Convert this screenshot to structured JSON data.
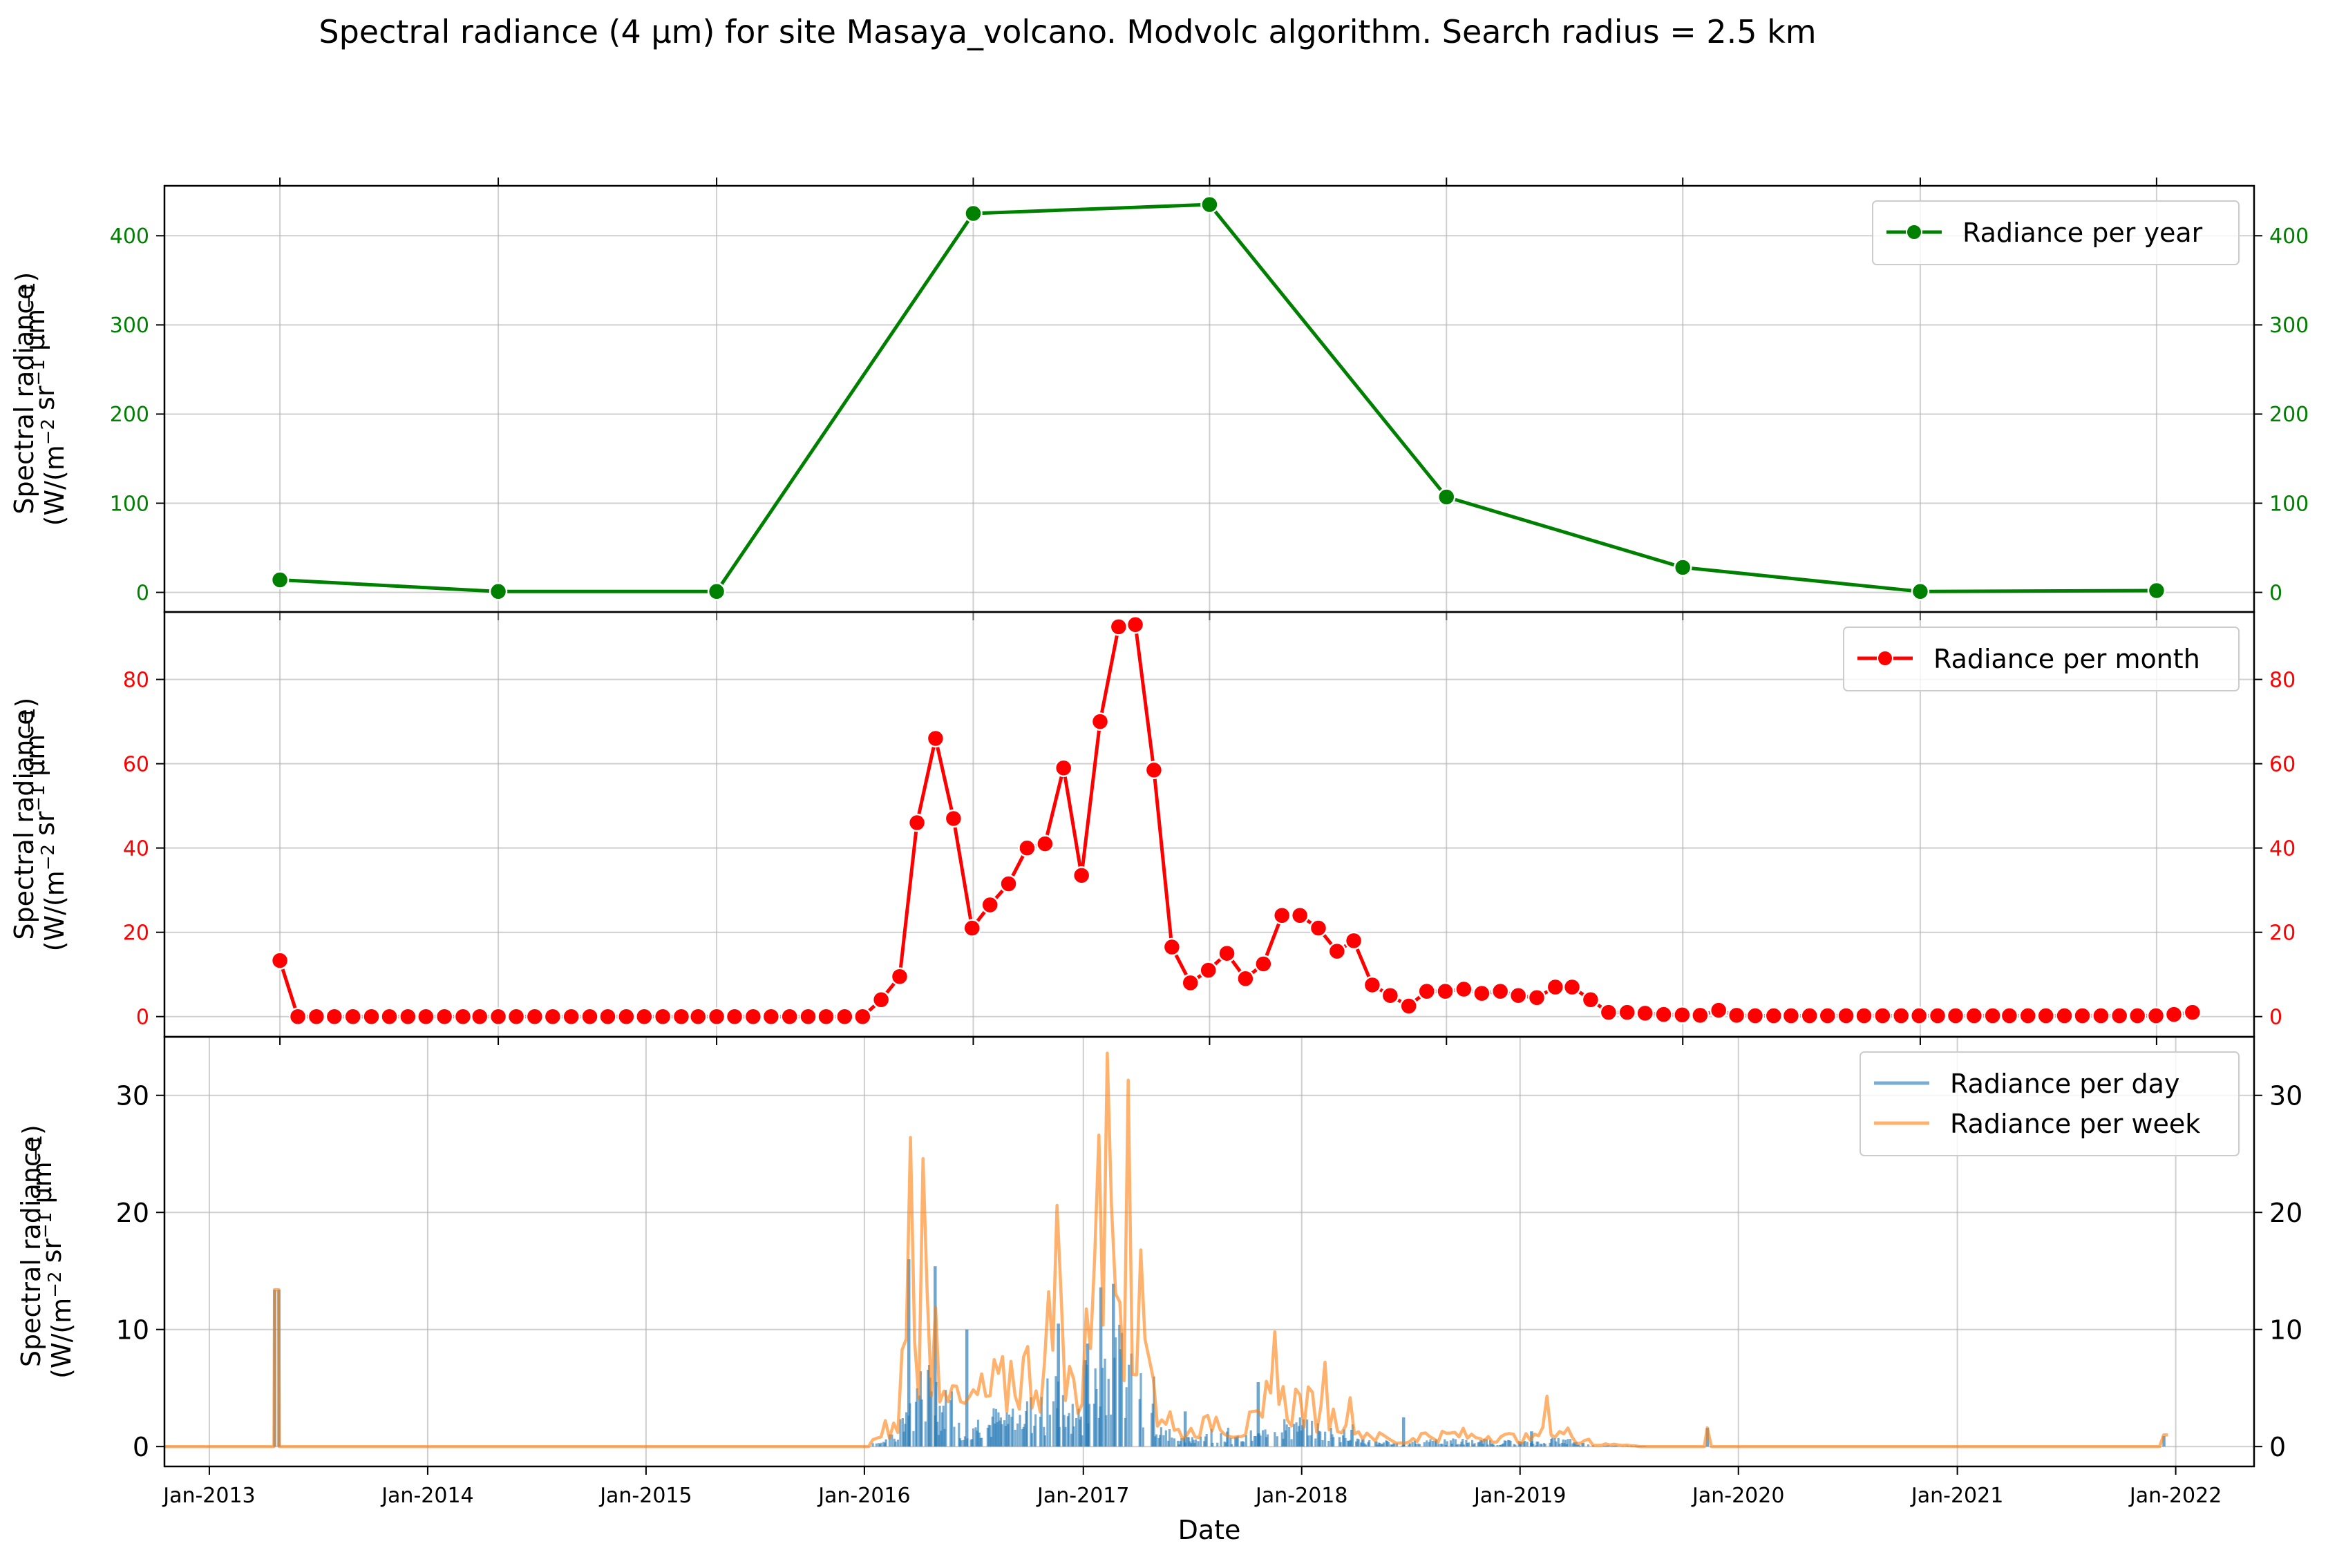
{
  "title": "Spectral radiance (4 µm) for site Masaya_volcano. Modvolc algorithm. Search radius = 2.5 km",
  "xlabel": "Date",
  "colors": {
    "year": "#008000",
    "month": "#ff0000",
    "day": "#1f77b4",
    "week": "#ff7f0e",
    "grid": "#b0b0b0"
  },
  "chart_data": [
    {
      "type": "line",
      "panel": "year",
      "ylabel_line1": "Spectral radiance",
      "ylabel_line2": "(W/(m",
      "ylabel_sup1": "−2",
      "ylabel_mid": " sr",
      "ylabel_sup2": "−1",
      "ylabel_mid2": " µm",
      "ylabel_sup3": "−1",
      "ylabel_end": ")",
      "ylim": [
        -22,
        456
      ],
      "yticks": [
        0,
        100,
        200,
        300,
        400
      ],
      "legend_position": "top-right",
      "series": [
        {
          "name": "Radiance per year",
          "x": [
            "2013-04-29",
            "2014-04-29",
            "2015-04-29",
            "2016-07-01",
            "2017-07-31",
            "2018-08-31",
            "2019-09-30",
            "2020-10-31",
            "2021-11-30"
          ],
          "values": [
            14,
            1,
            1,
            425,
            435,
            107,
            28,
            1,
            2
          ]
        }
      ]
    },
    {
      "type": "line",
      "panel": "month",
      "ylabel_line1": "Spectral radiance",
      "ylabel_line2": "(W/(m",
      "ylabel_sup1": "−2",
      "ylabel_mid": " sr",
      "ylabel_sup2": "−1",
      "ylabel_mid2": " µm",
      "ylabel_sup3": "−1",
      "ylabel_end": ")",
      "ylim": [
        -4.8,
        96
      ],
      "yticks": [
        0,
        20,
        40,
        60,
        80
      ],
      "legend_position": "top-right",
      "series": [
        {
          "name": "Radiance per month",
          "start": "2013-04",
          "values": [
            13.3,
            0,
            0,
            0,
            0,
            0,
            0,
            0,
            0,
            0,
            0,
            0,
            0,
            0,
            0,
            0,
            0,
            0,
            0,
            0,
            0,
            0,
            0,
            0,
            0,
            0,
            0,
            0,
            0,
            0,
            0,
            0,
            0,
            4,
            9.5,
            46,
            66,
            47,
            21,
            26.5,
            31.5,
            40,
            41,
            59,
            33.5,
            70,
            92.5,
            93,
            58.5,
            16.5,
            8,
            11,
            15,
            9,
            12.5,
            24,
            24,
            21,
            15.5,
            18,
            7.5,
            5,
            2.5,
            6,
            6,
            6.5,
            5.5,
            6,
            5,
            4.5,
            7,
            7,
            4,
            1,
            1,
            0.8,
            0.5,
            0.4,
            0.3,
            1.5,
            0.3,
            0.2,
            0.2,
            0.2,
            0.2,
            0.2,
            0.2,
            0.2,
            0.2,
            0.2,
            0.2,
            0.2,
            0.2,
            0.2,
            0.2,
            0.2,
            0.2,
            0.2,
            0.2,
            0.2,
            0.2,
            0.2,
            0.2,
            0.2,
            0.5,
            1
          ]
        }
      ]
    },
    {
      "type": "area",
      "panel": "day-week",
      "ylabel_line1": "Spectral radiance",
      "ylabel_line2": "(W/(m",
      "ylabel_sup1": "−2",
      "ylabel_mid": " sr",
      "ylabel_sup2": "−1",
      "ylabel_mid2": " µm",
      "ylabel_sup3": "−1",
      "ylabel_end": ")",
      "ylim": [
        -1.7,
        35
      ],
      "yticks": [
        0,
        10,
        20,
        30
      ],
      "xticks": [
        "Jan-2013",
        "Jan-2014",
        "Jan-2015",
        "Jan-2016",
        "Jan-2017",
        "Jan-2018",
        "Jan-2019",
        "Jan-2020",
        "Jan-2021",
        "Jan-2022"
      ],
      "xlim": [
        "2012-10-18",
        "2022-05-12"
      ],
      "legend_position": "top-right",
      "series": [
        {
          "name": "Radiance per day",
          "points": [
            [
              "2013-04-20",
              13.4
            ],
            [
              "2013-04-27",
              13.4
            ],
            [
              "2016-03-15",
              16
            ],
            [
              "2016-04-28",
              15.4
            ],
            [
              "2016-06-20",
              10
            ],
            [
              "2016-11-20",
              10.5
            ],
            [
              "2017-01-08",
              8.8
            ],
            [
              "2017-01-30",
              13.6
            ],
            [
              "2017-02-20",
              13.9
            ],
            [
              "2017-06-20",
              3
            ],
            [
              "2017-10-20",
              5.5
            ],
            [
              "2018-06-20",
              2.5
            ],
            [
              "2019-01-20",
              1.3
            ],
            [
              "2019-11-10",
              1.6
            ],
            [
              "2021-12-12",
              0.9
            ]
          ]
        },
        {
          "name": "Radiance per week",
          "points": [
            [
              "2013-04-20",
              13.4
            ],
            [
              "2013-04-27",
              13.4
            ],
            [
              "2016-03-15",
              26.4
            ],
            [
              "2016-04-05",
              24.6
            ],
            [
              "2016-11-15",
              20.6
            ],
            [
              "2017-01-25",
              26.6
            ],
            [
              "2017-02-08",
              33.6
            ],
            [
              "2017-03-15",
              31.3
            ],
            [
              "2017-04-05",
              16.8
            ],
            [
              "2017-11-15",
              9.8
            ],
            [
              "2018-02-10",
              7.2
            ],
            [
              "2019-02-15",
              4.3
            ],
            [
              "2019-11-10",
              1.6
            ],
            [
              "2021-12-12",
              1
            ]
          ]
        }
      ]
    }
  ]
}
